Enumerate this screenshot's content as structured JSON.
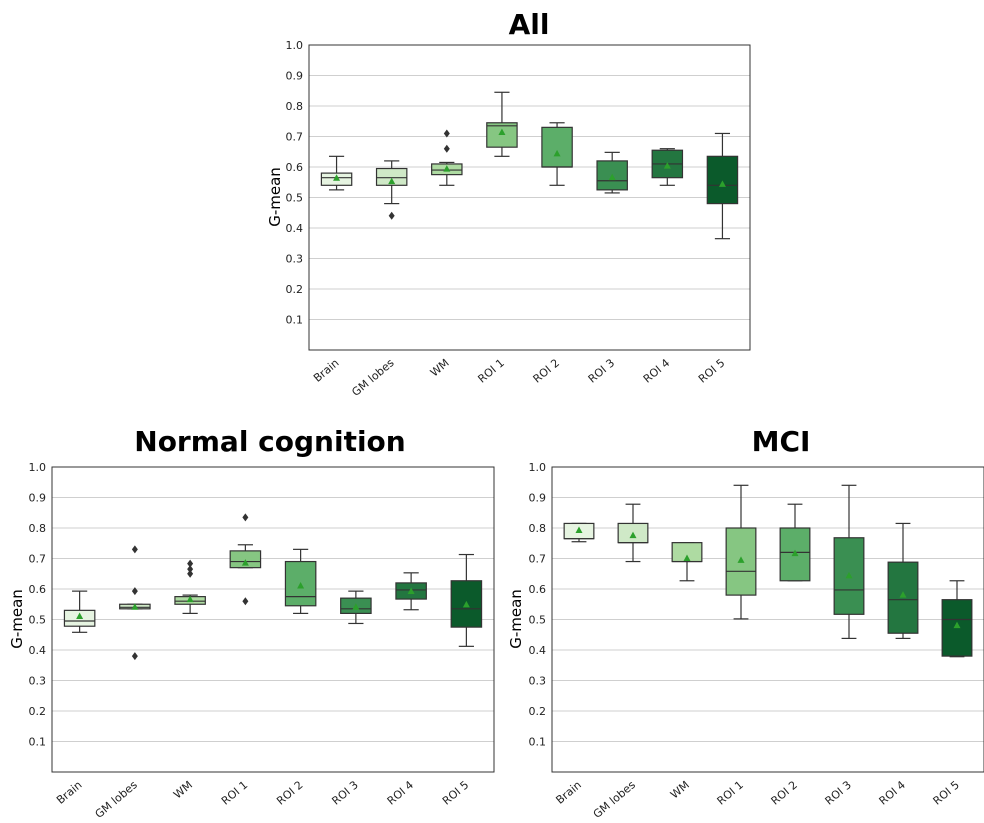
{
  "chart_data": [
    {
      "type": "box",
      "title": "All",
      "ylabel": "G-mean",
      "ylim": [
        0,
        1.0
      ],
      "yticks": [
        "0.1",
        "0.2",
        "0.3",
        "0.4",
        "0.5",
        "0.6",
        "0.7",
        "0.8",
        "0.9",
        "1.0"
      ],
      "categories": [
        "Brain",
        "GM lobes",
        "WM",
        "ROI 1",
        "ROI 2",
        "ROI 3",
        "ROI 4",
        "ROI 5"
      ],
      "colors": [
        "#e6f4e1",
        "#cfe9c7",
        "#aedba2",
        "#86c682",
        "#5cae69",
        "#3a8f52",
        "#237640",
        "#0b5a2b"
      ],
      "boxes": [
        {
          "lo": 0.525,
          "q1": 0.54,
          "med": 0.565,
          "q3": 0.58,
          "hi": 0.635,
          "mean": 0.563,
          "outliers": []
        },
        {
          "lo": 0.48,
          "q1": 0.54,
          "med": 0.565,
          "q3": 0.595,
          "hi": 0.62,
          "mean": 0.552,
          "outliers": [
            0.44
          ]
        },
        {
          "lo": 0.54,
          "q1": 0.575,
          "med": 0.59,
          "q3": 0.61,
          "hi": 0.615,
          "mean": 0.593,
          "outliers": [
            0.66,
            0.71
          ]
        },
        {
          "lo": 0.635,
          "q1": 0.665,
          "med": 0.735,
          "q3": 0.745,
          "hi": 0.845,
          "mean": 0.713,
          "outliers": []
        },
        {
          "lo": 0.54,
          "q1": 0.6,
          "med": 0.6,
          "q3": 0.73,
          "hi": 0.745,
          "mean": 0.643,
          "outliers": []
        },
        {
          "lo": 0.515,
          "q1": 0.525,
          "med": 0.555,
          "q3": 0.62,
          "hi": 0.648,
          "mean": 0.565,
          "outliers": []
        },
        {
          "lo": 0.54,
          "q1": 0.565,
          "med": 0.61,
          "q3": 0.655,
          "hi": 0.66,
          "mean": 0.603,
          "outliers": []
        },
        {
          "lo": 0.365,
          "q1": 0.48,
          "med": 0.54,
          "q3": 0.635,
          "hi": 0.71,
          "mean": 0.543,
          "outliers": []
        }
      ]
    },
    {
      "type": "box",
      "title": "Normal cognition",
      "ylabel": "G-mean",
      "ylim": [
        0,
        1.0
      ],
      "yticks": [
        "0.1",
        "0.2",
        "0.3",
        "0.4",
        "0.5",
        "0.6",
        "0.7",
        "0.8",
        "0.9",
        "1.0"
      ],
      "categories": [
        "Brain",
        "GM lobes",
        "WM",
        "ROI 1",
        "ROI 2",
        "ROI 3",
        "ROI 4",
        "ROI 5"
      ],
      "colors": [
        "#e6f4e1",
        "#cfe9c7",
        "#aedba2",
        "#86c682",
        "#5cae69",
        "#3a8f52",
        "#237640",
        "#0b5a2b"
      ],
      "boxes": [
        {
          "lo": 0.458,
          "q1": 0.478,
          "med": 0.495,
          "q3": 0.53,
          "hi": 0.593,
          "mean": 0.51,
          "outliers": []
        },
        {
          "lo": 0.535,
          "q1": 0.535,
          "med": 0.54,
          "q3": 0.55,
          "hi": 0.55,
          "mean": 0.54,
          "outliers": [
            0.38,
            0.593,
            0.73
          ]
        },
        {
          "lo": 0.52,
          "q1": 0.55,
          "med": 0.56,
          "q3": 0.575,
          "hi": 0.58,
          "mean": 0.565,
          "outliers": [
            0.65,
            0.665,
            0.683
          ]
        },
        {
          "lo": 0.67,
          "q1": 0.67,
          "med": 0.69,
          "q3": 0.725,
          "hi": 0.745,
          "mean": 0.685,
          "outliers": [
            0.56,
            0.835
          ]
        },
        {
          "lo": 0.52,
          "q1": 0.545,
          "med": 0.575,
          "q3": 0.69,
          "hi": 0.73,
          "mean": 0.61,
          "outliers": []
        },
        {
          "lo": 0.487,
          "q1": 0.52,
          "med": 0.535,
          "q3": 0.57,
          "hi": 0.593,
          "mean": 0.54,
          "outliers": []
        },
        {
          "lo": 0.532,
          "q1": 0.567,
          "med": 0.597,
          "q3": 0.62,
          "hi": 0.653,
          "mean": 0.592,
          "outliers": []
        },
        {
          "lo": 0.412,
          "q1": 0.475,
          "med": 0.535,
          "q3": 0.627,
          "hi": 0.713,
          "mean": 0.548,
          "outliers": []
        }
      ]
    },
    {
      "type": "box",
      "title": "MCI",
      "ylabel": "G-mean",
      "ylim": [
        0,
        1.0
      ],
      "yticks": [
        "0.1",
        "0.2",
        "0.3",
        "0.4",
        "0.5",
        "0.6",
        "0.7",
        "0.8",
        "0.9",
        "1.0"
      ],
      "categories": [
        "Brain",
        "GM lobes",
        "WM",
        "ROI 1",
        "ROI 2",
        "ROI 3",
        "ROI 4",
        "ROI 5"
      ],
      "colors": [
        "#e6f4e1",
        "#cfe9c7",
        "#aedba2",
        "#86c682",
        "#5cae69",
        "#3a8f52",
        "#237640",
        "#0b5a2b"
      ],
      "boxes": [
        {
          "lo": 0.755,
          "q1": 0.765,
          "med": 0.765,
          "q3": 0.815,
          "hi": 0.815,
          "mean": 0.792,
          "outliers": []
        },
        {
          "lo": 0.69,
          "q1": 0.752,
          "med": 0.752,
          "q3": 0.815,
          "hi": 0.878,
          "mean": 0.775,
          "outliers": []
        },
        {
          "lo": 0.627,
          "q1": 0.69,
          "med": 0.69,
          "q3": 0.752,
          "hi": 0.752,
          "mean": 0.7,
          "outliers": []
        },
        {
          "lo": 0.502,
          "q1": 0.58,
          "med": 0.658,
          "q3": 0.8,
          "hi": 0.94,
          "mean": 0.694,
          "outliers": []
        },
        {
          "lo": 0.627,
          "q1": 0.627,
          "med": 0.72,
          "q3": 0.8,
          "hi": 0.878,
          "mean": 0.716,
          "outliers": []
        },
        {
          "lo": 0.438,
          "q1": 0.517,
          "med": 0.597,
          "q3": 0.768,
          "hi": 0.94,
          "mean": 0.643,
          "outliers": []
        },
        {
          "lo": 0.438,
          "q1": 0.455,
          "med": 0.565,
          "q3": 0.688,
          "hi": 0.815,
          "mean": 0.58,
          "outliers": []
        },
        {
          "lo": 0.378,
          "q1": 0.38,
          "med": 0.5,
          "q3": 0.565,
          "hi": 0.627,
          "mean": 0.48,
          "outliers": []
        }
      ]
    }
  ]
}
